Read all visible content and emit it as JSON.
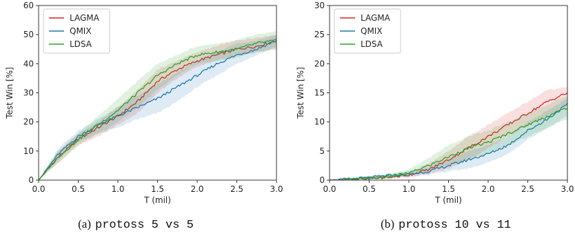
{
  "chart_data": [
    {
      "type": "line",
      "xlabel": "T (mil)",
      "ylabel": "Test Win [%]",
      "xlim": [
        0,
        3.0
      ],
      "ylim": [
        0,
        60
      ],
      "xticks": [
        "0.0",
        "0.5",
        "1.0",
        "1.5",
        "2.0",
        "2.5",
        "3.0"
      ],
      "yticks": [
        "0",
        "10",
        "20",
        "30",
        "40",
        "50",
        "60"
      ],
      "grid": false,
      "legend_position": "top-left",
      "caption": {
        "letter": "(a)",
        "env": "protoss 5 vs 5"
      },
      "x": [
        0.0,
        0.25,
        0.5,
        0.75,
        1.0,
        1.25,
        1.5,
        1.75,
        2.0,
        2.25,
        2.5,
        2.75,
        3.0
      ],
      "series": [
        {
          "name": "LAGMA",
          "color": "#d62728",
          "values": [
            0,
            8,
            14,
            18,
            22,
            27,
            34,
            38,
            41,
            43,
            45,
            46,
            48
          ],
          "lower": [
            0,
            6,
            12,
            15,
            19,
            23,
            30,
            35,
            39,
            41,
            43,
            44,
            45
          ],
          "upper": [
            0,
            10,
            16,
            20,
            25,
            31,
            38,
            41,
            44,
            46,
            48,
            49,
            50
          ]
        },
        {
          "name": "QMIX",
          "color": "#1f77b4",
          "values": [
            0,
            9,
            15,
            19,
            22,
            25,
            28,
            32,
            36,
            40,
            43,
            45,
            48
          ],
          "lower": [
            0,
            7,
            13,
            16,
            18,
            21,
            23,
            27,
            32,
            36,
            40,
            43,
            46
          ],
          "upper": [
            0,
            11,
            17,
            21,
            25,
            29,
            33,
            37,
            41,
            44,
            47,
            48,
            50
          ]
        },
        {
          "name": "LDSA",
          "color": "#2ca02c",
          "values": [
            0,
            8,
            14,
            19,
            24,
            30,
            36,
            40,
            43,
            44,
            45,
            47,
            48
          ],
          "lower": [
            0,
            6,
            12,
            16,
            20,
            25,
            31,
            36,
            40,
            41,
            42,
            44,
            45
          ],
          "upper": [
            0,
            10,
            16,
            22,
            28,
            34,
            40,
            43,
            46,
            47,
            48,
            50,
            51
          ]
        }
      ]
    },
    {
      "type": "line",
      "xlabel": "T (mil)",
      "ylabel": "Test Win [%]",
      "xlim": [
        0,
        3.0
      ],
      "ylim": [
        0,
        30
      ],
      "xticks": [
        "0.0",
        "0.5",
        "1.0",
        "1.5",
        "2.0",
        "2.5",
        "3.0"
      ],
      "yticks": [
        "0",
        "5",
        "10",
        "15",
        "20",
        "25",
        "30"
      ],
      "grid": false,
      "legend_position": "top-left",
      "caption": {
        "letter": "(b)",
        "env": "protoss 10 vs 11"
      },
      "x": [
        0.0,
        0.25,
        0.5,
        0.75,
        1.0,
        1.25,
        1.5,
        1.75,
        2.0,
        2.25,
        2.5,
        2.75,
        3.0
      ],
      "series": [
        {
          "name": "LAGMA",
          "color": "#d62728",
          "values": [
            0,
            0.1,
            0.3,
            0.5,
            0.9,
            1.8,
            3.5,
            5.5,
            7.5,
            9.5,
            11.5,
            13.5,
            15.0
          ],
          "lower": [
            0,
            0,
            0.1,
            0.2,
            0.5,
            1.0,
            2.0,
            3.5,
            5.5,
            7.5,
            9.5,
            11.0,
            13.0
          ],
          "upper": [
            0,
            0.3,
            0.5,
            0.8,
            1.4,
            2.8,
            5.0,
            7.5,
            9.5,
            11.5,
            13.5,
            15.5,
            16.0
          ]
        },
        {
          "name": "QMIX",
          "color": "#1f77b4",
          "values": [
            0,
            0.2,
            0.4,
            0.8,
            1.0,
            1.5,
            2.5,
            3.5,
            4.5,
            6.0,
            8.5,
            10.5,
            13.0
          ],
          "lower": [
            0,
            0,
            0.2,
            0.5,
            0.6,
            1.0,
            1.5,
            2.0,
            3.0,
            4.5,
            7.0,
            9.0,
            11.0
          ],
          "upper": [
            0,
            0.4,
            0.7,
            1.1,
            1.5,
            2.2,
            3.5,
            5.0,
            6.0,
            7.5,
            10.0,
            12.0,
            14.0
          ]
        },
        {
          "name": "LDSA",
          "color": "#2ca02c",
          "values": [
            0,
            0.1,
            0.3,
            0.6,
            1.2,
            2.5,
            4.0,
            5.5,
            6.5,
            8.0,
            9.5,
            11.0,
            12.5
          ],
          "lower": [
            0,
            0,
            0.1,
            0.3,
            0.7,
            1.5,
            2.5,
            3.5,
            4.5,
            6.0,
            7.5,
            9.0,
            10.5
          ],
          "upper": [
            0,
            0.3,
            0.6,
            1.0,
            1.8,
            3.8,
            6.0,
            7.5,
            8.5,
            10.0,
            11.5,
            13.0,
            14.5
          ]
        }
      ]
    }
  ]
}
